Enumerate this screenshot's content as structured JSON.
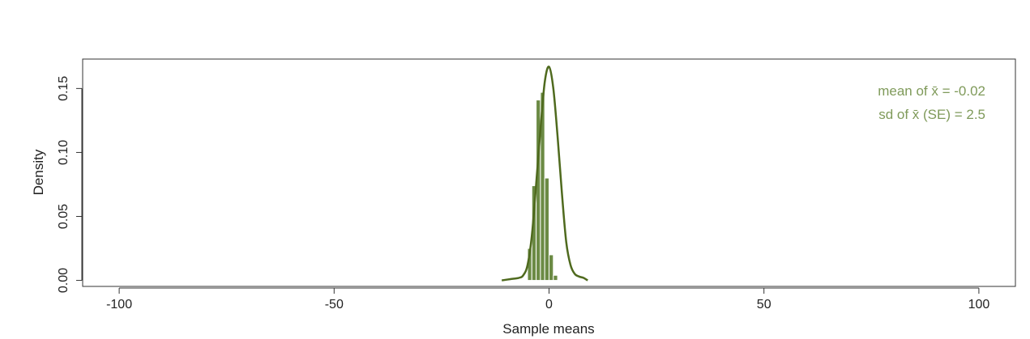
{
  "chart_data": {
    "type": "bar",
    "title": "",
    "xlabel": "Sample means",
    "ylabel": "Density",
    "xlim": [
      -108.5,
      108.5
    ],
    "ylim": [
      -0.0047,
      0.173
    ],
    "grid": false,
    "x_ticks": [
      -100,
      -50,
      0,
      50,
      100
    ],
    "x_tick_labels": [
      "-100",
      "-50",
      "0",
      "50",
      "100"
    ],
    "y_ticks": [
      0.0,
      0.05,
      0.1,
      0.15
    ],
    "y_tick_labels": [
      "0.00",
      "0.05",
      "0.10",
      "0.15"
    ],
    "histogram": {
      "bin_edges": [
        -6,
        -5,
        -4,
        -3,
        -2,
        -1,
        0,
        1,
        2,
        3,
        4,
        5,
        6,
        7,
        8
      ],
      "densities": [
        0.0,
        0.025,
        0.074,
        0.141,
        0.147,
        0.08,
        0.02,
        0.004,
        0.0,
        0.0,
        0.0,
        0.0,
        0.0,
        0.0
      ],
      "color": "#6b8a44"
    },
    "density_curve": {
      "x": [
        -11,
        -9,
        -7,
        -6,
        -5,
        -4,
        -3,
        -2,
        -1,
        0,
        1,
        2,
        3,
        4,
        5,
        6,
        7,
        8,
        9
      ],
      "y": [
        0.0,
        0.001,
        0.002,
        0.004,
        0.012,
        0.035,
        0.075,
        0.118,
        0.155,
        0.167,
        0.15,
        0.112,
        0.068,
        0.03,
        0.012,
        0.005,
        0.003,
        0.002,
        0.0
      ],
      "color": "#4f6a1e"
    },
    "annotations": [
      {
        "label": "mean of  x̄ = -0.02"
      },
      {
        "label": "sd of  x̄ (SE) = 2.5"
      }
    ],
    "annotation_color": "#7f9a5a"
  }
}
